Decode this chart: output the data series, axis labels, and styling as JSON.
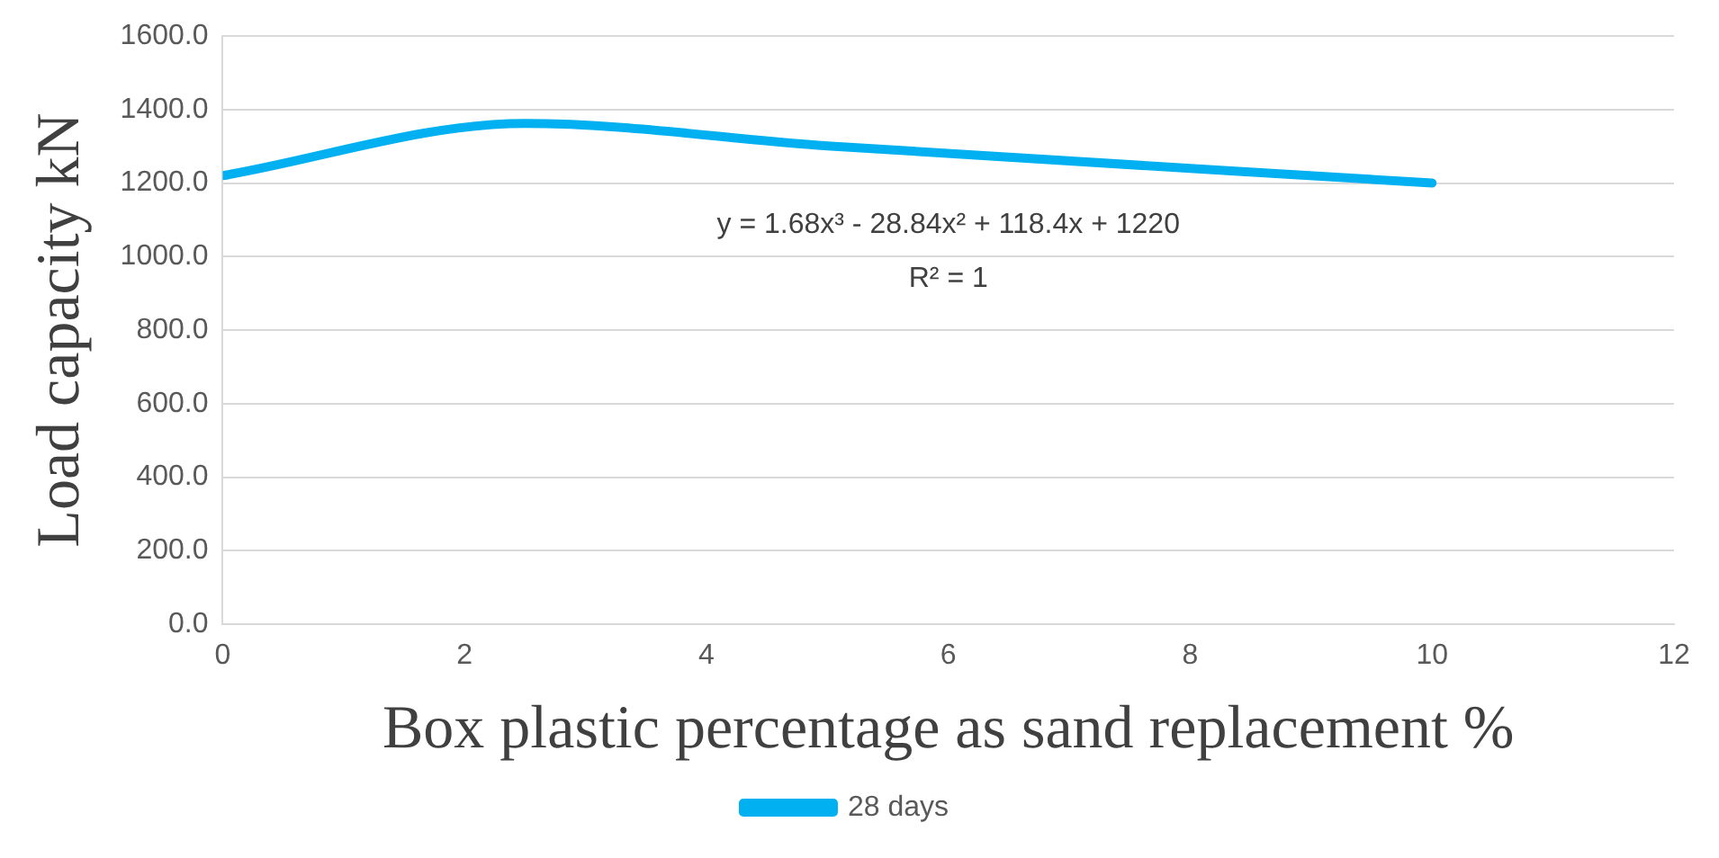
{
  "chart_data": {
    "type": "line",
    "xlabel": "Box plastic percentage as sand replacement %",
    "ylabel": "Load capacity kN",
    "x": [
      0,
      2.5,
      5,
      10
    ],
    "series": [
      {
        "name": "28 days",
        "color": "#00b0f0",
        "values": [
          1220,
          1362,
          1301,
          1200
        ]
      }
    ],
    "xlim": [
      0,
      12
    ],
    "xticks": [
      0,
      2,
      4,
      6,
      8,
      10,
      12
    ],
    "ylim": [
      0,
      1600
    ],
    "yticks": [
      {
        "value": 0,
        "label": "0.0"
      },
      {
        "value": 200,
        "label": "200.0"
      },
      {
        "value": 400,
        "label": "400.0"
      },
      {
        "value": 600,
        "label": "600.0"
      },
      {
        "value": 800,
        "label": "800.0"
      },
      {
        "value": 1000,
        "label": "1000.0"
      },
      {
        "value": 1200,
        "label": "1200.0"
      },
      {
        "value": 1400,
        "label": "1400.0"
      },
      {
        "value": 1600,
        "label": "1600.0"
      }
    ],
    "annotations": [
      "y = 1.68x³ - 28.84x² + 118.4x + 1220",
      "R² = 1"
    ],
    "grid": "y",
    "legend": "bottom",
    "marker": "none",
    "line_style": "solid"
  }
}
